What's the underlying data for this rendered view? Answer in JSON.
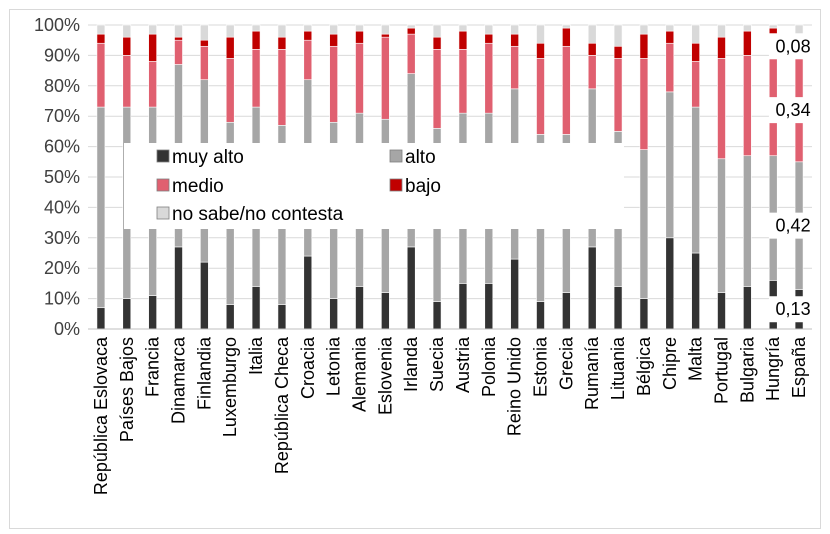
{
  "chart_data": {
    "type": "bar",
    "stacked": true,
    "percent": true,
    "title": "",
    "xlabel": "",
    "ylabel": "",
    "ylim": [
      0,
      100
    ],
    "y_ticks": [
      "0%",
      "10%",
      "20%",
      "30%",
      "40%",
      "50%",
      "60%",
      "70%",
      "80%",
      "90%",
      "100%"
    ],
    "grid": true,
    "legend_position": "inside-left",
    "categories": [
      "República Eslovaca",
      "Países Bajos",
      "Francia",
      "Dinamarca",
      "Finlandia",
      "Luxemburgo",
      "Italia",
      "República Checa",
      "Croacia",
      "Letonia",
      "Alemania",
      "Eslovenia",
      "Irlanda",
      "Suecia",
      "Austria",
      "Polonia",
      "Reino Unido",
      "Estonia",
      "Grecia",
      "Rumanía",
      "Lituania",
      "Bélgica",
      "Chipre",
      "Malta",
      "Portugal",
      "Bulgaria",
      "Hungría",
      "España"
    ],
    "series": [
      {
        "name": "muy alto",
        "color": "#333333",
        "values": [
          7,
          10,
          11,
          27,
          22,
          8,
          14,
          8,
          24,
          10,
          14,
          12,
          27,
          9,
          15,
          15,
          23,
          9,
          12,
          27,
          14,
          10,
          30,
          25,
          12,
          14,
          16,
          13
        ]
      },
      {
        "name": "alto",
        "color": "#a6a6a6",
        "values": [
          66,
          63,
          62,
          60,
          60,
          60,
          59,
          59,
          58,
          58,
          57,
          57,
          57,
          57,
          56,
          56,
          56,
          55,
          52,
          52,
          51,
          49,
          48,
          48,
          44,
          43,
          41,
          42
        ]
      },
      {
        "name": "medio",
        "color": "#e06070",
        "values": [
          21,
          17,
          15,
          8,
          11,
          21,
          19,
          25,
          13,
          25,
          23,
          27,
          13,
          26,
          21,
          23,
          14,
          25,
          29,
          11,
          24,
          30,
          16,
          15,
          33,
          33,
          34,
          34
        ]
      },
      {
        "name": "bajo",
        "color": "#c00000",
        "values": [
          3,
          6,
          9,
          1,
          2,
          7,
          6,
          4,
          3,
          4,
          4,
          1,
          2,
          4,
          6,
          3,
          4,
          5,
          6,
          4,
          4,
          8,
          4,
          6,
          7,
          8,
          8,
          8
        ]
      },
      {
        "name": "no sabe/no contesta",
        "color": "#d9d9d9",
        "values": [
          3,
          4,
          3,
          4,
          5,
          4,
          2,
          4,
          2,
          3,
          2,
          3,
          1,
          4,
          2,
          3,
          3,
          6,
          1,
          6,
          7,
          3,
          2,
          6,
          4,
          2,
          1,
          3
        ]
      }
    ],
    "data_labels": [
      {
        "category": "España",
        "series": "muy alto",
        "text": "0,13"
      },
      {
        "category": "España",
        "series": "alto",
        "text": "0,42"
      },
      {
        "category": "España",
        "series": "medio",
        "text": "0,34"
      },
      {
        "category": "España",
        "series": "bajo",
        "text": "0,08"
      }
    ]
  }
}
